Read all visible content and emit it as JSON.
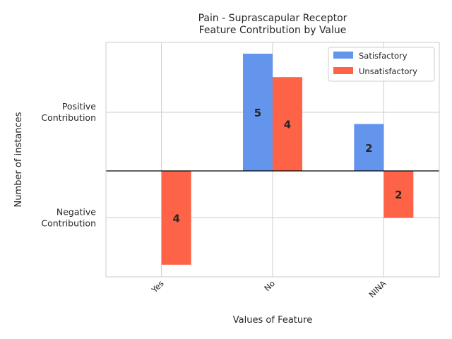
{
  "chart_data": {
    "type": "bar",
    "title": "Pain - Suprascapular Receptor\nFeature Contribution by Value",
    "xlabel": "Values of Feature",
    "ylabel": "Number of instances",
    "categories": [
      "Yes",
      "No",
      "NINA"
    ],
    "series": [
      {
        "name": "Satisfactory",
        "color": "#6495ED",
        "values": [
          0,
          5,
          2
        ],
        "labels": [
          "",
          "5",
          "2"
        ]
      },
      {
        "name": "Unsatisfactory",
        "color": "#FF6347",
        "values": [
          -4,
          4,
          -2
        ],
        "labels": [
          "4",
          "4",
          "2"
        ]
      }
    ],
    "ylim": [
      -4.5,
      5.5
    ],
    "y_ticks": [
      {
        "value": 2.5,
        "label": "Positive\nContribution"
      },
      {
        "value": -2,
        "label": "Negative\nContribution"
      }
    ],
    "grid": true,
    "legend_position": "top-right",
    "zero_line": true
  }
}
